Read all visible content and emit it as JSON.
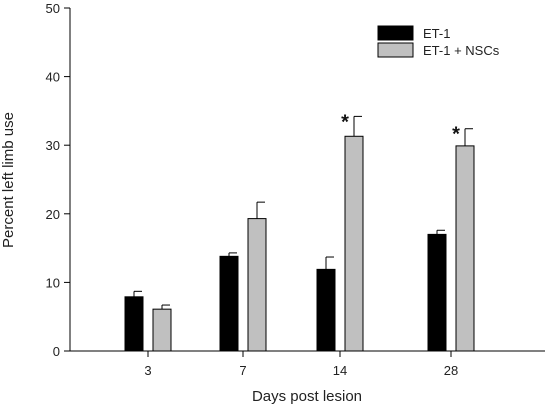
{
  "chart_data": {
    "type": "bar",
    "title": "",
    "xlabel": "Days post lesion",
    "ylabel": "Percent left limb use",
    "categories": [
      "3",
      "7",
      "14",
      "28"
    ],
    "ylim": [
      0,
      50
    ],
    "yticks": [
      "0",
      "10",
      "20",
      "30",
      "40",
      "50"
    ],
    "grid": false,
    "legend_position": "top-right",
    "series": [
      {
        "name": "ET-1",
        "color": "#000000",
        "values": [
          7.9,
          13.8,
          11.9,
          17.0
        ],
        "errors": [
          0.8,
          0.5,
          1.8,
          0.6
        ]
      },
      {
        "name": "ET-1 + NSCs",
        "color": "#c0c0c0",
        "values": [
          6.1,
          19.3,
          31.3,
          29.9
        ],
        "errors": [
          0.6,
          2.4,
          2.9,
          2.5
        ]
      }
    ],
    "annotations": [
      {
        "category": "14",
        "series": "ET-1 + NSCs",
        "text": "*"
      },
      {
        "category": "28",
        "series": "ET-1 + NSCs",
        "text": "*"
      }
    ]
  }
}
